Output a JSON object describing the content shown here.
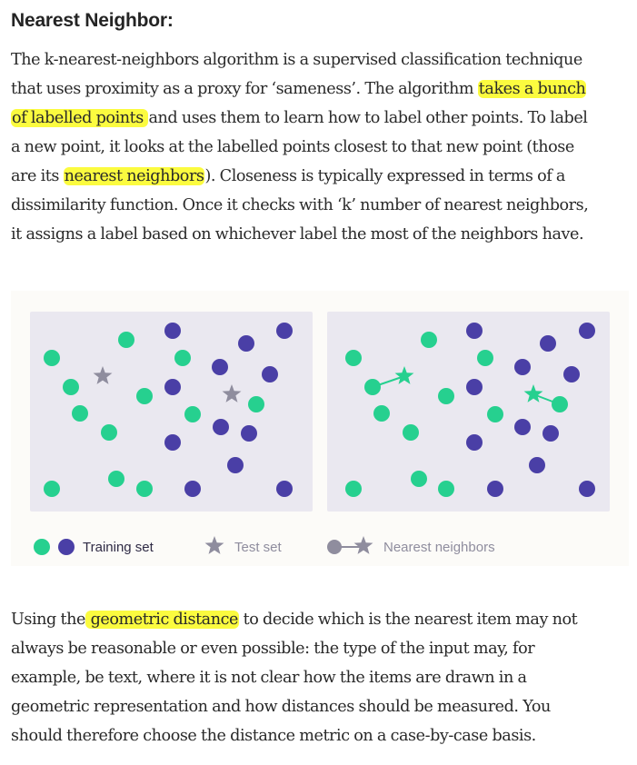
{
  "heading": "Nearest Neighbor:",
  "paragraph1": {
    "lines": [
      [
        {
          "t": "The k-nearest-neighbors algorithm is a supervised classification technique"
        }
      ],
      [
        {
          "t": "that uses proximity as a proxy for ‘sameness’. The algorithm "
        },
        {
          "t": "takes a bunch",
          "hl": true
        }
      ],
      [
        {
          "t": "of labelled points ",
          "hl": true
        },
        {
          "t": "and uses them to learn how to label other points. To label"
        }
      ],
      [
        {
          "t": "a new point, it looks at the labelled points closest to that new point (those"
        }
      ],
      [
        {
          "t": "are its "
        },
        {
          "t": "nearest neighbors",
          "hl": true
        },
        {
          "t": "). Closeness is typically expressed in terms of a"
        }
      ],
      [
        {
          "t": "dissimilarity function. Once it checks with ‘k’ number of nearest neighbors,"
        }
      ],
      [
        {
          "t": "it assigns a label based on whichever label the most of the neighbors have."
        }
      ]
    ]
  },
  "paragraph2": {
    "lines": [
      [
        {
          "t": "Using the"
        },
        {
          "t": " geometric distance",
          "hl": true
        },
        {
          "t": " to decide which is the nearest item may not"
        }
      ],
      [
        {
          "t": "always be reasonable or even possible: the type of the input may, for"
        }
      ],
      [
        {
          "t": "example, be text, where it is not clear how the items are drawn in a"
        }
      ],
      [
        {
          "t": "geometric representation and how distances should be measured. You"
        }
      ],
      [
        {
          "t": "should therefore choose the distance metric on a case-by-case basis."
        }
      ]
    ]
  },
  "figure": {
    "colors": {
      "background": "#fcfbf8",
      "panel": "#eae8f0",
      "green": "#26d08f",
      "purple": "#4a3fa6",
      "gray": "#8f8d9e",
      "training_text": "#2f2b45",
      "muted_text": "#8f8d9e"
    },
    "legend": {
      "training": "Training set",
      "test": "Test set",
      "neighbors": "Nearest neighbors"
    },
    "panels": [
      {
        "name": "before",
        "green": [
          [
            57,
            394
          ],
          [
            139,
            374
          ],
          [
            201,
            394
          ],
          [
            78,
            426
          ],
          [
            159,
            436
          ],
          [
            282,
            445
          ],
          [
            88,
            455
          ],
          [
            212,
            456
          ],
          [
            120,
            476
          ],
          [
            128,
            527
          ],
          [
            57,
            538
          ],
          [
            159,
            538
          ]
        ],
        "purple": [
          [
            190,
            364
          ],
          [
            313,
            364
          ],
          [
            271,
            378
          ],
          [
            242,
            404
          ],
          [
            297,
            412
          ],
          [
            190,
            426
          ],
          [
            243,
            470
          ],
          [
            274,
            477
          ],
          [
            190,
            487
          ],
          [
            259,
            512
          ],
          [
            212,
            538
          ],
          [
            313,
            538
          ]
        ],
        "test_stars": [
          [
            113,
            414
          ],
          [
            255,
            434
          ]
        ],
        "links": []
      },
      {
        "name": "after",
        "green": [
          [
            389,
            394
          ],
          [
            472,
            374
          ],
          [
            534,
            394
          ],
          [
            410,
            426
          ],
          [
            491,
            436
          ],
          [
            616,
            445
          ],
          [
            420,
            455
          ],
          [
            545,
            456
          ],
          [
            452,
            476
          ],
          [
            461,
            527
          ],
          [
            389,
            538
          ],
          [
            491,
            538
          ]
        ],
        "purple": [
          [
            522,
            364
          ],
          [
            646,
            364
          ],
          [
            603,
            378
          ],
          [
            575,
            404
          ],
          [
            629,
            412
          ],
          [
            522,
            426
          ],
          [
            575,
            470
          ],
          [
            606,
            477
          ],
          [
            522,
            487
          ],
          [
            591,
            512
          ],
          [
            545,
            538
          ],
          [
            646,
            538
          ]
        ],
        "test_stars": [],
        "neighbor_stars": [
          [
            445,
            414
          ],
          [
            587,
            434
          ]
        ],
        "links": [
          [
            [
              445,
              414
            ],
            [
              410,
              426
            ]
          ],
          [
            [
              587,
              434
            ],
            [
              616,
              445
            ]
          ]
        ]
      }
    ]
  }
}
